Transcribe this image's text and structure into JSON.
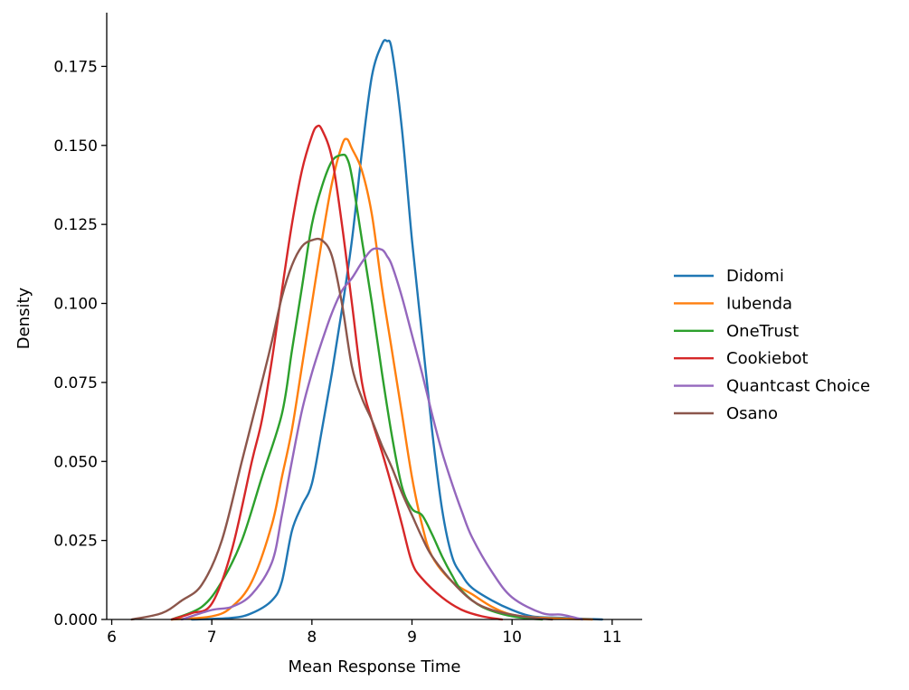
{
  "chart_data": {
    "type": "line",
    "title": "",
    "xlabel": "Mean Response Time",
    "ylabel": "Density",
    "xlim": [
      5.95,
      11.3
    ],
    "ylim": [
      0,
      0.192
    ],
    "xticks": [
      6,
      7,
      8,
      9,
      10,
      11
    ],
    "yticks": [
      0,
      0.025,
      0.05,
      0.075,
      0.1,
      0.125,
      0.15,
      0.175
    ],
    "ytick_labels": [
      "0.000",
      "0.025",
      "0.050",
      "0.075",
      "0.100",
      "0.125",
      "0.150",
      "0.175"
    ],
    "grid": false,
    "legend_position": "right",
    "series": [
      {
        "name": "Didomi",
        "color": "#1f77b4",
        "x": [
          6.8,
          7.2,
          7.4,
          7.6,
          7.7,
          7.8,
          7.9,
          8.0,
          8.1,
          8.2,
          8.3,
          8.4,
          8.5,
          8.6,
          8.7,
          8.75,
          8.8,
          8.9,
          9.0,
          9.1,
          9.2,
          9.3,
          9.4,
          9.5,
          9.6,
          9.8,
          10.0,
          10.2,
          10.5,
          10.9
        ],
        "y": [
          0.0,
          0.0005,
          0.002,
          0.006,
          0.012,
          0.028,
          0.036,
          0.043,
          0.06,
          0.078,
          0.098,
          0.12,
          0.148,
          0.172,
          0.182,
          0.183,
          0.18,
          0.155,
          0.12,
          0.09,
          0.06,
          0.035,
          0.02,
          0.014,
          0.01,
          0.006,
          0.003,
          0.001,
          0.0005,
          0.0
        ]
      },
      {
        "name": "Iubenda",
        "color": "#ff7f0e",
        "x": [
          6.6,
          7.0,
          7.2,
          7.4,
          7.6,
          7.7,
          7.8,
          7.9,
          8.0,
          8.1,
          8.2,
          8.3,
          8.35,
          8.4,
          8.5,
          8.6,
          8.7,
          8.8,
          8.9,
          9.0,
          9.1,
          9.2,
          9.4,
          9.6,
          9.8,
          10.0,
          10.3,
          10.8
        ],
        "y": [
          0.0,
          0.001,
          0.004,
          0.012,
          0.03,
          0.045,
          0.06,
          0.08,
          0.1,
          0.12,
          0.138,
          0.15,
          0.152,
          0.149,
          0.142,
          0.128,
          0.105,
          0.085,
          0.065,
          0.045,
          0.03,
          0.02,
          0.012,
          0.008,
          0.004,
          0.0015,
          0.0005,
          0.0
        ]
      },
      {
        "name": "OneTrust",
        "color": "#2ca02c",
        "x": [
          6.6,
          6.9,
          7.1,
          7.3,
          7.5,
          7.7,
          7.8,
          7.9,
          8.0,
          8.1,
          8.2,
          8.3,
          8.35,
          8.4,
          8.5,
          8.6,
          8.7,
          8.8,
          8.9,
          9.0,
          9.1,
          9.2,
          9.3,
          9.4,
          9.5,
          9.7,
          10.0,
          10.3
        ],
        "y": [
          0.0,
          0.004,
          0.012,
          0.025,
          0.045,
          0.065,
          0.085,
          0.105,
          0.125,
          0.137,
          0.145,
          0.147,
          0.146,
          0.14,
          0.12,
          0.1,
          0.078,
          0.058,
          0.042,
          0.035,
          0.033,
          0.027,
          0.02,
          0.014,
          0.009,
          0.004,
          0.001,
          0.0
        ]
      },
      {
        "name": "Cookiebot",
        "color": "#d62728",
        "x": [
          6.6,
          6.8,
          7.0,
          7.2,
          7.4,
          7.5,
          7.6,
          7.7,
          7.8,
          7.9,
          8.0,
          8.05,
          8.1,
          8.2,
          8.3,
          8.4,
          8.5,
          8.6,
          8.7,
          8.8,
          8.9,
          9.0,
          9.1,
          9.3,
          9.5,
          9.7,
          9.9
        ],
        "y": [
          0.0,
          0.002,
          0.005,
          0.022,
          0.05,
          0.063,
          0.082,
          0.104,
          0.125,
          0.142,
          0.153,
          0.156,
          0.155,
          0.146,
          0.125,
          0.1,
          0.075,
          0.063,
          0.053,
          0.042,
          0.03,
          0.018,
          0.013,
          0.007,
          0.003,
          0.001,
          0.0
        ]
      },
      {
        "name": "Quantcast Choice",
        "color": "#9467bd",
        "x": [
          6.7,
          7.0,
          7.2,
          7.4,
          7.6,
          7.7,
          7.8,
          7.9,
          8.0,
          8.1,
          8.2,
          8.3,
          8.4,
          8.5,
          8.6,
          8.7,
          8.75,
          8.8,
          8.9,
          9.0,
          9.1,
          9.2,
          9.3,
          9.4,
          9.5,
          9.6,
          9.8,
          10.0,
          10.3,
          10.5,
          10.7
        ],
        "y": [
          0.0,
          0.003,
          0.004,
          0.008,
          0.018,
          0.033,
          0.05,
          0.066,
          0.078,
          0.088,
          0.097,
          0.104,
          0.108,
          0.113,
          0.117,
          0.117,
          0.115,
          0.112,
          0.102,
          0.09,
          0.078,
          0.065,
          0.053,
          0.043,
          0.034,
          0.026,
          0.015,
          0.007,
          0.002,
          0.0015,
          0.0
        ]
      },
      {
        "name": "Osano",
        "color": "#8c564b",
        "x": [
          6.2,
          6.5,
          6.7,
          6.9,
          7.1,
          7.3,
          7.5,
          7.6,
          7.7,
          7.8,
          7.9,
          8.0,
          8.1,
          8.2,
          8.3,
          8.4,
          8.5,
          8.6,
          8.7,
          8.8,
          8.9,
          9.0,
          9.1,
          9.2,
          9.4,
          9.6,
          9.8,
          10.1,
          10.4
        ],
        "y": [
          0.0,
          0.002,
          0.006,
          0.011,
          0.025,
          0.05,
          0.075,
          0.088,
          0.102,
          0.112,
          0.118,
          0.12,
          0.12,
          0.115,
          0.1,
          0.08,
          0.07,
          0.063,
          0.055,
          0.048,
          0.04,
          0.033,
          0.026,
          0.02,
          0.012,
          0.006,
          0.003,
          0.001,
          0.0
        ]
      }
    ]
  }
}
